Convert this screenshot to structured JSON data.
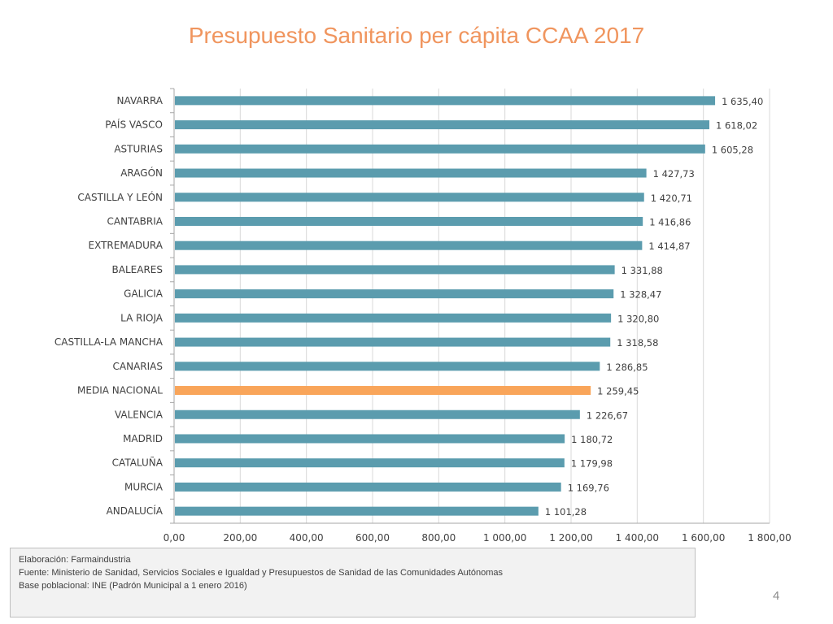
{
  "title": "Presupuesto Sanitario per cápita CCAA 2017",
  "chart_data": {
    "type": "bar",
    "orientation": "horizontal",
    "title": "Presupuesto Sanitario per cápita CCAA 2017",
    "xlabel": "",
    "ylabel": "",
    "xlim": [
      0,
      1800
    ],
    "x_ticks": [
      "0,00",
      "200,00",
      "400,00",
      "600,00",
      "800,00",
      "1 000,00",
      "1 200,00",
      "1 400,00",
      "1 600,00",
      "1 800,00"
    ],
    "x_tick_values": [
      0,
      200,
      400,
      600,
      800,
      1000,
      1200,
      1400,
      1600,
      1800
    ],
    "grid": true,
    "categories": [
      "NAVARRA",
      "PAÍS VASCO",
      "ASTURIAS",
      "ARAGÓN",
      "CASTILLA Y LEÓN",
      "CANTABRIA",
      "EXTREMADURA",
      "BALEARES",
      "GALICIA",
      "LA RIOJA",
      "CASTILLA-LA MANCHA",
      "CANARIAS",
      "MEDIA NACIONAL",
      "VALENCIA",
      "MADRID",
      "CATALUÑA",
      "MURCIA",
      "ANDALUCÍA"
    ],
    "values": [
      1635.4,
      1618.02,
      1605.28,
      1427.73,
      1420.71,
      1416.86,
      1414.87,
      1331.88,
      1328.47,
      1320.8,
      1318.58,
      1286.85,
      1259.45,
      1226.67,
      1180.72,
      1179.98,
      1169.76,
      1101.28
    ],
    "value_labels": [
      "1 635,40",
      "1 618,02",
      "1 605,28",
      "1 427,73",
      "1 420,71",
      "1 416,86",
      "1 414,87",
      "1 331,88",
      "1 328,47",
      "1 320,80",
      "1 318,58",
      "1 286,85",
      "1 259,45",
      "1 226,67",
      "1 180,72",
      "1 179,98",
      "1 169,76",
      "1 101,28"
    ],
    "bar_color": "#5B9CAE",
    "highlight_category": "MEDIA NACIONAL",
    "highlight_color": "#F9A55A"
  },
  "source": {
    "lines": [
      "Elaboración: Farmaindustria",
      "Fuente: Ministerio de Sanidad, Servicios Sociales e Igualdad y Presupuestos de Sanidad de las Comunidades Autónomas",
      "Base poblacional: INE (Padrón Municipal a 1 enero 2016)"
    ]
  },
  "page_number": "4"
}
